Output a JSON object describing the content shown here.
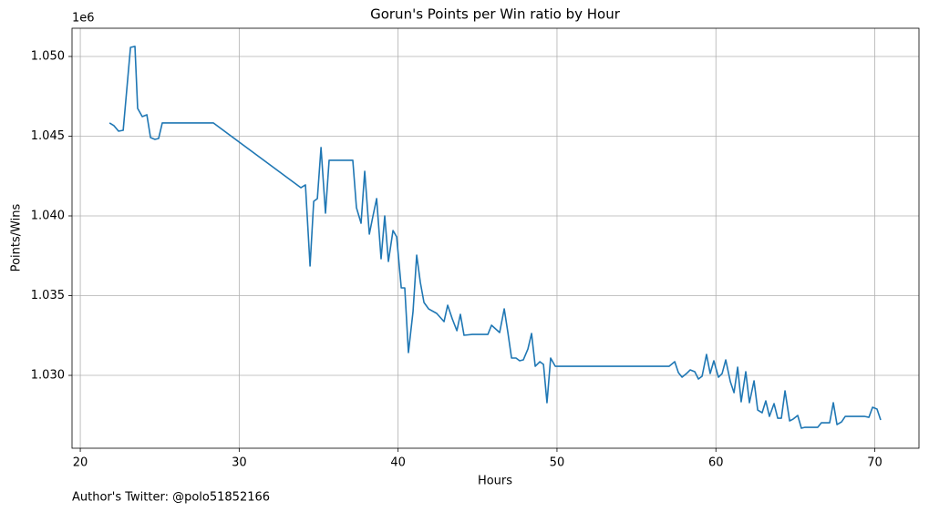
{
  "chart_data": {
    "type": "line",
    "title": "Gorun's Points per Win ratio by Hour",
    "x_label": "Hours",
    "y_label": "Points/Wins",
    "y_offset_label": "1e6",
    "footnote": "Author's Twitter: @polo51852166",
    "grid": true,
    "xlim": [
      19.48,
      72.78
    ],
    "ylim": [
      1025430,
      1051770
    ],
    "xticks": [
      20,
      30,
      40,
      50,
      60,
      70
    ],
    "yticks": [
      {
        "value": 1030000,
        "label": "1.030"
      },
      {
        "value": 1035000,
        "label": "1.035"
      },
      {
        "value": 1040000,
        "label": "1.040"
      },
      {
        "value": 1045000,
        "label": "1.045"
      },
      {
        "value": 1050000,
        "label": "1.050"
      }
    ],
    "x": [
      21.84,
      22.12,
      22.41,
      22.7,
      23.16,
      23.44,
      23.61,
      23.9,
      24.19,
      24.42,
      24.7,
      24.93,
      25.16,
      28.38,
      33.88,
      34.17,
      34.46,
      34.69,
      34.92,
      35.15,
      35.43,
      35.66,
      37.15,
      37.38,
      37.67,
      37.9,
      38.19,
      38.42,
      38.65,
      38.93,
      39.16,
      39.39,
      39.68,
      39.91,
      40.2,
      40.42,
      40.65,
      40.94,
      41.17,
      41.4,
      41.63,
      41.92,
      42.43,
      42.89,
      43.12,
      43.41,
      43.7,
      43.92,
      44.15,
      44.67,
      45.65,
      45.88,
      46.39,
      46.68,
      46.91,
      47.14,
      47.42,
      47.65,
      47.88,
      48.17,
      48.4,
      48.63,
      48.92,
      49.15,
      49.37,
      49.6,
      49.89,
      50.12,
      57.06,
      57.41,
      57.64,
      57.87,
      58.15,
      58.38,
      58.67,
      58.9,
      59.13,
      59.41,
      59.64,
      59.87,
      60.16,
      60.39,
      60.62,
      60.91,
      61.14,
      61.37,
      61.59,
      61.88,
      62.11,
      62.4,
      62.63,
      62.91,
      63.14,
      63.37,
      63.66,
      63.89,
      64.12,
      64.35,
      64.64,
      64.86,
      65.15,
      65.38,
      65.61,
      66.41,
      66.64,
      67.16,
      67.39,
      67.62,
      67.91,
      68.14,
      69.34,
      69.63,
      69.86,
      70.14,
      70.37
    ],
    "series": [
      {
        "name": "Points/Wins",
        "color": "#1f77b4",
        "values": [
          1045829,
          1045657,
          1045314,
          1045371,
          1050571,
          1050629,
          1046743,
          1046229,
          1046343,
          1044914,
          1044800,
          1044857,
          1045829,
          1045829,
          1041771,
          1041943,
          1036857,
          1040914,
          1041086,
          1044286,
          1040171,
          1043486,
          1043486,
          1040514,
          1039543,
          1042800,
          1038857,
          1040000,
          1041086,
          1037314,
          1040000,
          1037143,
          1039086,
          1038686,
          1035486,
          1035486,
          1031429,
          1034000,
          1037543,
          1035829,
          1034571,
          1034171,
          1033886,
          1033371,
          1034400,
          1033543,
          1032800,
          1033829,
          1032514,
          1032571,
          1032571,
          1033143,
          1032686,
          1034171,
          1032686,
          1031086,
          1031086,
          1030914,
          1030971,
          1031657,
          1032629,
          1030571,
          1030857,
          1030686,
          1028286,
          1031086,
          1030571,
          1030571,
          1030571,
          1030857,
          1030171,
          1029886,
          1030114,
          1030343,
          1030229,
          1029771,
          1029943,
          1031314,
          1030114,
          1030914,
          1029886,
          1030114,
          1030971,
          1029600,
          1028914,
          1030514,
          1028343,
          1030229,
          1028286,
          1029657,
          1027829,
          1027657,
          1028400,
          1027429,
          1028229,
          1027314,
          1027314,
          1029029,
          1027143,
          1027257,
          1027486,
          1026686,
          1026743,
          1026743,
          1027029,
          1027029,
          1028286,
          1026914,
          1027086,
          1027429,
          1027429,
          1027371,
          1028000,
          1027886,
          1027200
        ]
      }
    ]
  }
}
